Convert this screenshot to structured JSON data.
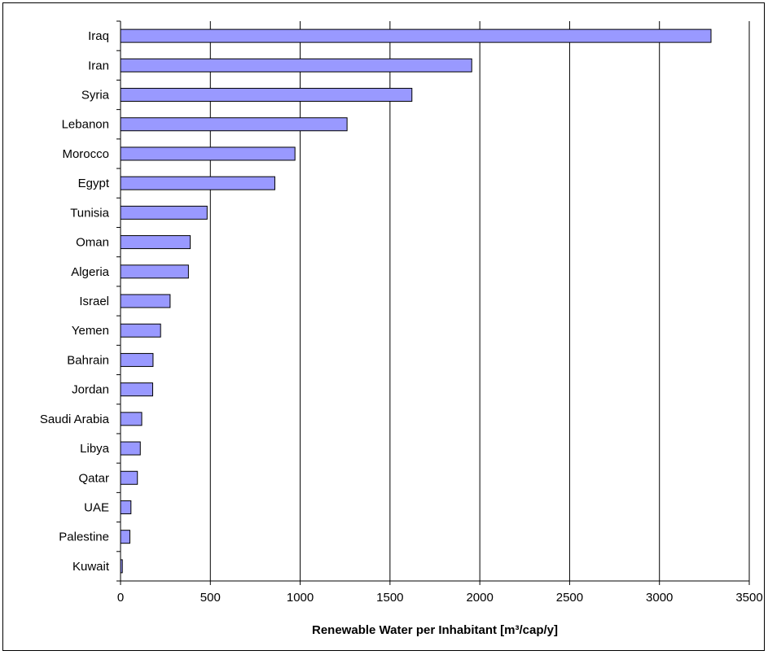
{
  "chart_data": {
    "type": "bar",
    "orientation": "horizontal",
    "categories": [
      "Iraq",
      "Iran",
      "Syria",
      "Lebanon",
      "Morocco",
      "Egypt",
      "Tunisia",
      "Oman",
      "Algeria",
      "Israel",
      "Yemen",
      "Bahrain",
      "Jordan",
      "Saudi Arabia",
      "Libya",
      "Qatar",
      "UAE",
      "Palestine",
      "Kuwait"
    ],
    "values": [
      3287,
      1955,
      1622,
      1261,
      971,
      859,
      482,
      388,
      378,
      276,
      223,
      181,
      179,
      118,
      110,
      94,
      58,
      52,
      10
    ],
    "xlabel": "Renewable Water per Inhabitant [m³/cap/y]",
    "ylabel": "",
    "xlim": [
      0,
      3500
    ],
    "xticks": [
      "0",
      "500",
      "1000",
      "1500",
      "2000",
      "2500",
      "3000",
      "3500"
    ],
    "grid": "vertical",
    "bar_color": "#9999ff",
    "bar_edge_color": "#000000"
  }
}
